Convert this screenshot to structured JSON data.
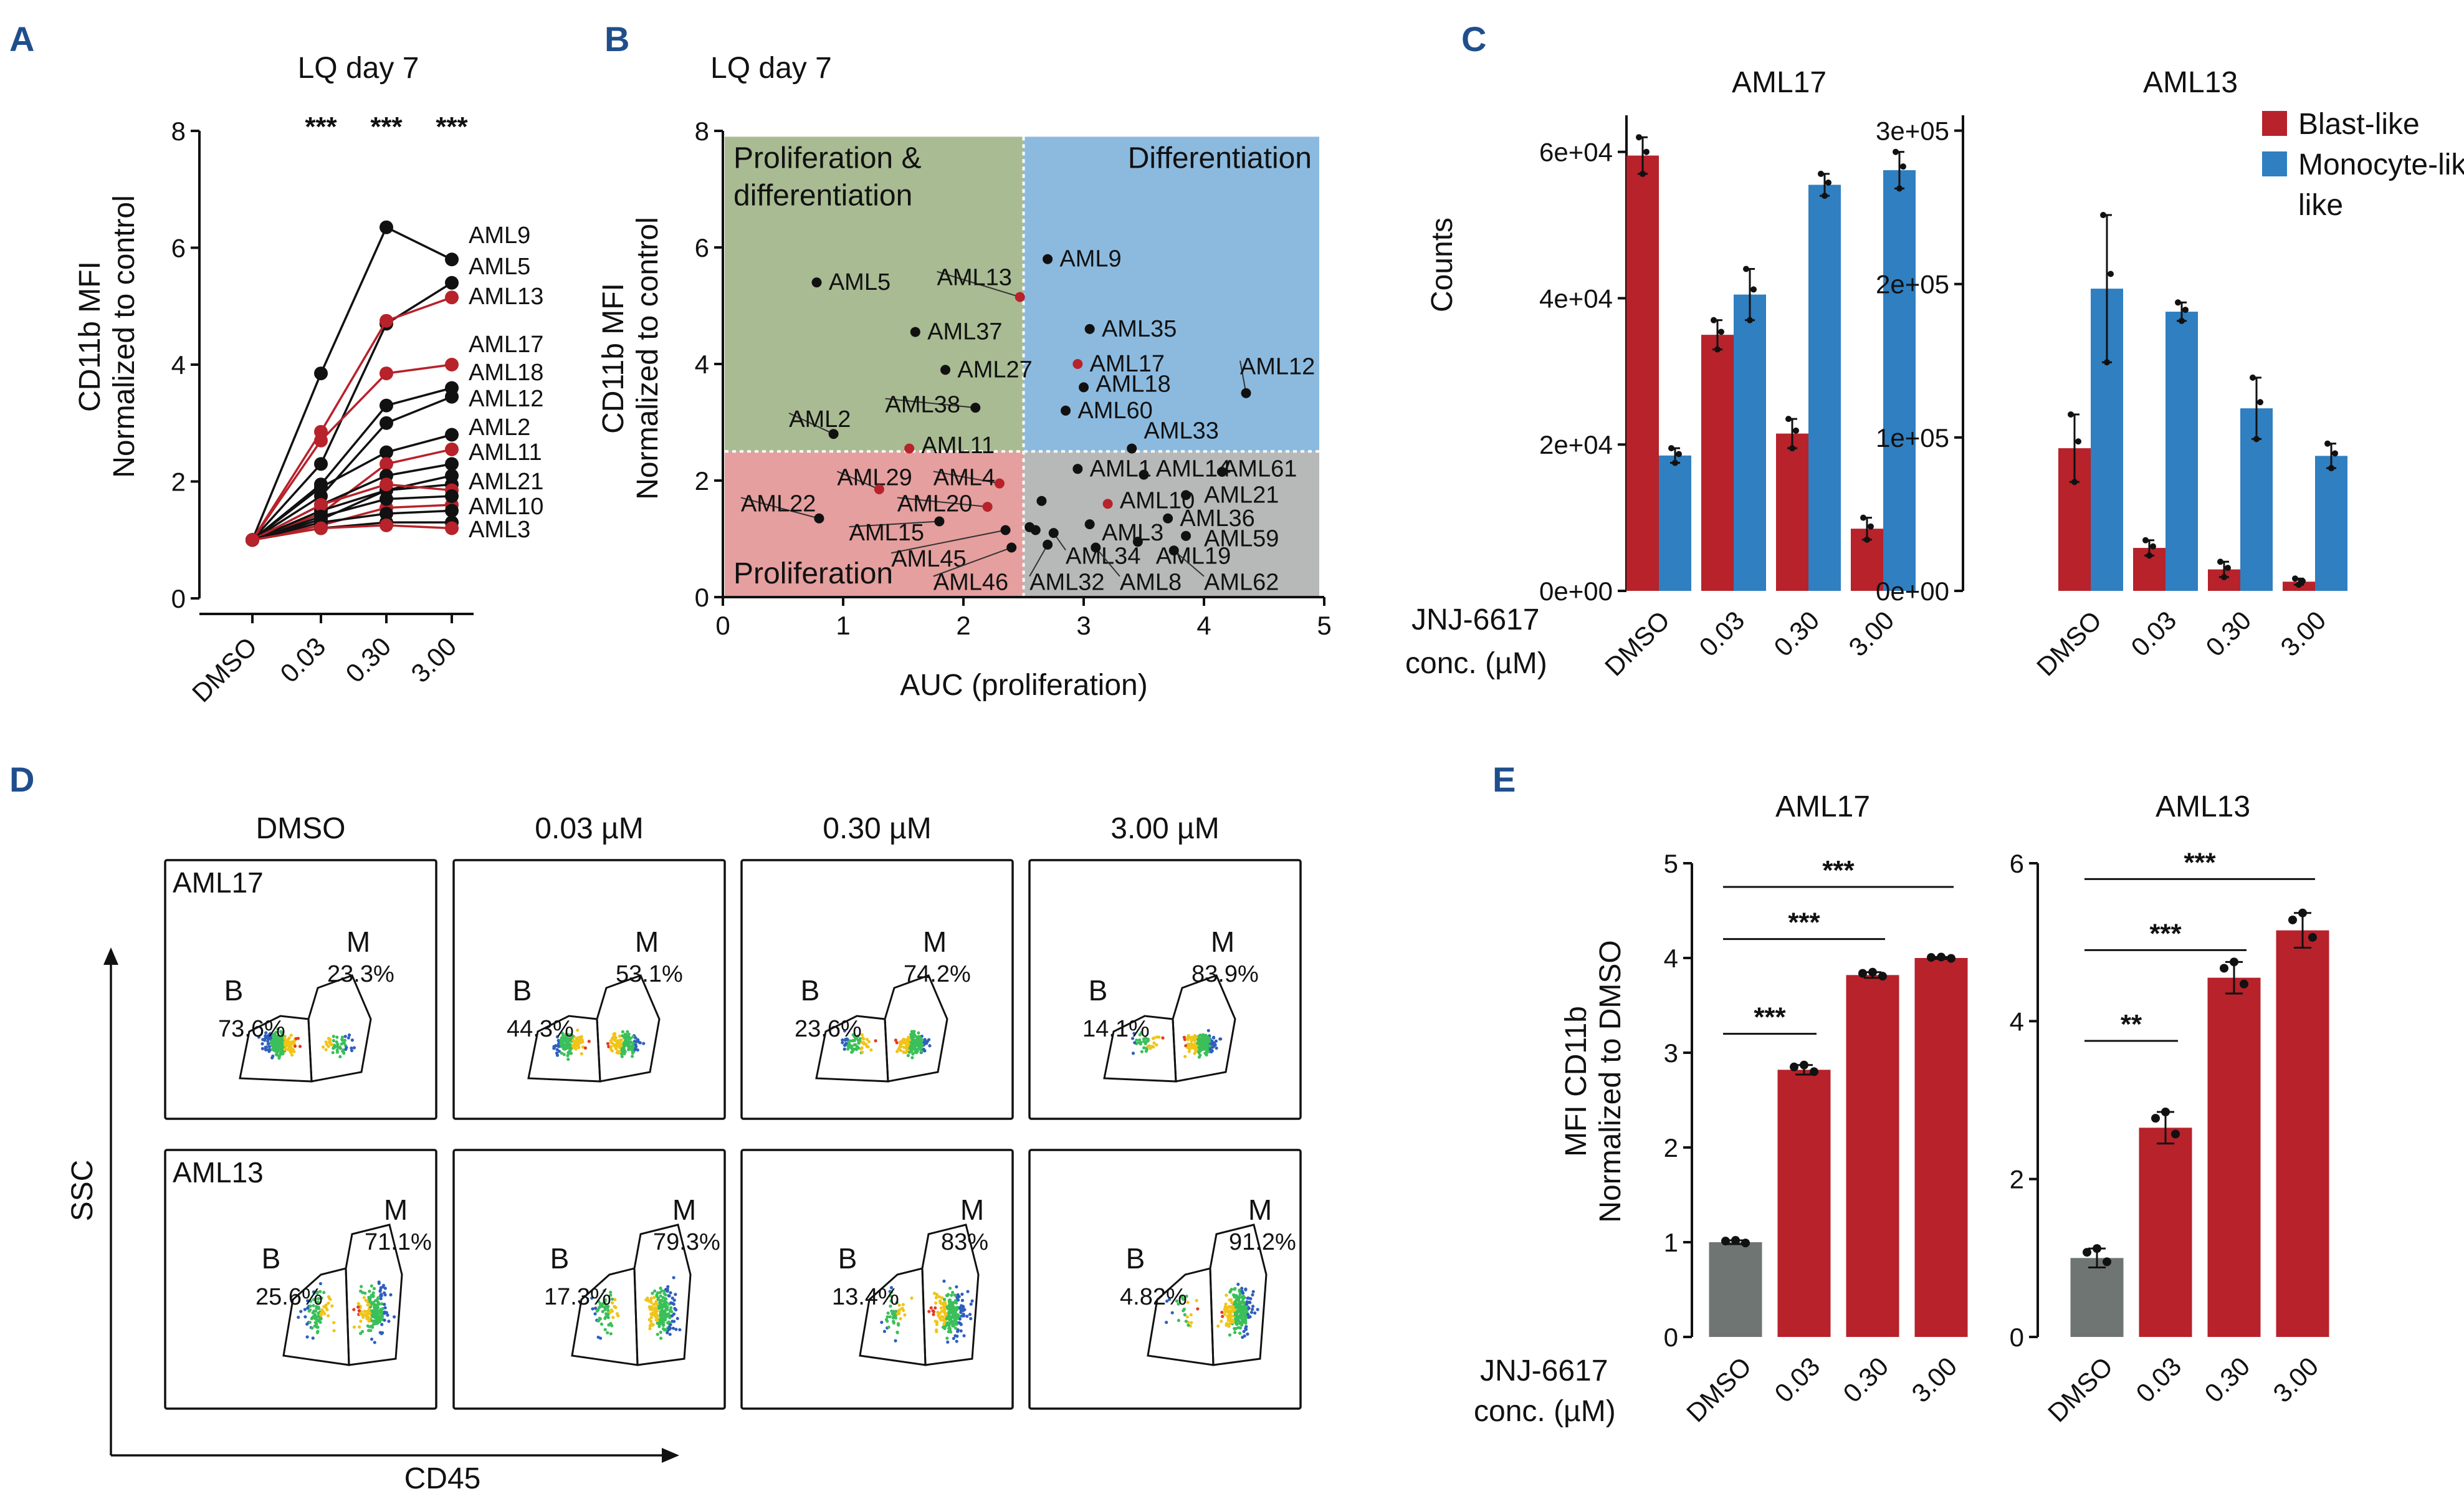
{
  "colors": {
    "red": "#b7222b",
    "blue": "#2f7fc1",
    "grey": "#6f7573",
    "black": "#111111",
    "quad_green": "#a9bb92",
    "quad_blue": "#8cbadf",
    "quad_red": "#e49f9e",
    "quad_grey": "#b7b9b8"
  },
  "panel_letters": {
    "A": "A",
    "B": "B",
    "C": "C",
    "D": "D",
    "E": "E"
  },
  "chart_data": [
    {
      "id": "A",
      "type": "line",
      "title": "LQ day 7",
      "ylabel_top": "CD11b MFI",
      "ylabel_bottom": "Normalized to control",
      "categories": [
        "DMSO",
        "0.03",
        "0.30",
        "3.00"
      ],
      "ylim": [
        0,
        8
      ],
      "yticks": [
        "0",
        "2",
        "4",
        "6",
        "8"
      ],
      "ytick_values": [
        0,
        2,
        4,
        6,
        8
      ],
      "significance": [
        "***",
        "***",
        "***"
      ],
      "series": [
        {
          "name": "AML9",
          "color": "black",
          "values": [
            1,
            3.85,
            6.35,
            5.8
          ]
        },
        {
          "name": "AML5",
          "color": "black",
          "values": [
            1,
            2.3,
            4.7,
            5.4
          ]
        },
        {
          "name": "AML13",
          "color": "red",
          "values": [
            1,
            2.85,
            4.75,
            5.15
          ]
        },
        {
          "name": "AML17",
          "color": "red",
          "values": [
            1,
            2.7,
            3.85,
            4.0
          ]
        },
        {
          "name": "AML18",
          "color": "black",
          "values": [
            1,
            1.95,
            3.3,
            3.6
          ]
        },
        {
          "name": "AML12",
          "color": "black",
          "values": [
            1,
            1.75,
            3.0,
            3.45
          ]
        },
        {
          "name": "AML2",
          "color": "black",
          "values": [
            1,
            1.9,
            2.5,
            2.8
          ]
        },
        {
          "name": "AML11",
          "color": "red",
          "values": [
            1,
            1.45,
            2.3,
            2.55
          ]
        },
        {
          "name": "AML21",
          "color": "black",
          "values": [
            1,
            1.35,
            1.85,
            1.95
          ]
        },
        {
          "name": "AML10",
          "color": "red",
          "values": [
            1,
            1.25,
            1.55,
            1.6
          ]
        },
        {
          "name": "AML3",
          "color": "black",
          "values": [
            1,
            1.2,
            1.3,
            1.3
          ]
        },
        {
          "name": "",
          "color": "black",
          "values": [
            1,
            1.6,
            2.1,
            2.3
          ]
        },
        {
          "name": "",
          "color": "black",
          "values": [
            1,
            1.5,
            1.85,
            2.1
          ]
        },
        {
          "name": "",
          "color": "red",
          "values": [
            1,
            1.6,
            1.95,
            1.85
          ]
        },
        {
          "name": "",
          "color": "black",
          "values": [
            1,
            1.4,
            1.7,
            1.75
          ]
        },
        {
          "name": "",
          "color": "black",
          "values": [
            1,
            1.3,
            1.45,
            1.5
          ]
        },
        {
          "name": "",
          "color": "red",
          "values": [
            1,
            1.2,
            1.25,
            1.2
          ]
        }
      ]
    },
    {
      "id": "B",
      "type": "scatter",
      "title": "LQ day 7",
      "xlabel": "AUC (proliferation)",
      "ylabel_top": "CD11b MFI",
      "ylabel_bottom": "Normalized to control",
      "xlim": [
        0,
        5
      ],
      "ylim": [
        0,
        8
      ],
      "xticks": [
        "0",
        "1",
        "2",
        "3",
        "4",
        "5"
      ],
      "xtick_values": [
        0,
        1,
        2,
        3,
        4,
        5
      ],
      "yticks": [
        "0",
        "2",
        "4",
        "6",
        "8"
      ],
      "ytick_values": [
        0,
        2,
        4,
        6,
        8
      ],
      "thresholds": {
        "x": 2.5,
        "y": 2.5
      },
      "quadrant_labels": {
        "top_left_line1": "Proliferation &",
        "top_left_line2": "differentiation",
        "top_right": "Differentiation",
        "bottom_left": "Proliferation"
      },
      "points": [
        {
          "label": "AML5",
          "x": 0.78,
          "y": 5.4,
          "color": "black",
          "lx": 0.88,
          "ly": 5.4
        },
        {
          "label": "AML13",
          "x": 2.47,
          "y": 5.15,
          "color": "red",
          "lx": 1.78,
          "ly": 5.48
        },
        {
          "label": "AML37",
          "x": 1.6,
          "y": 4.55,
          "color": "black",
          "lx": 1.7,
          "ly": 4.55
        },
        {
          "label": "AML27",
          "x": 1.85,
          "y": 3.9,
          "color": "black",
          "lx": 1.95,
          "ly": 3.9
        },
        {
          "label": "AML38",
          "x": 2.1,
          "y": 3.25,
          "color": "black",
          "lx": 1.35,
          "ly": 3.3
        },
        {
          "label": "AML2",
          "x": 0.92,
          "y": 2.8,
          "color": "black",
          "lx": 0.55,
          "ly": 3.05
        },
        {
          "label": "AML11",
          "x": 1.55,
          "y": 2.55,
          "color": "red",
          "lx": 1.65,
          "ly": 2.6
        },
        {
          "label": "AML9",
          "x": 2.7,
          "y": 5.8,
          "color": "black",
          "lx": 2.8,
          "ly": 5.8
        },
        {
          "label": "AML35",
          "x": 3.05,
          "y": 4.6,
          "color": "black",
          "lx": 3.15,
          "ly": 4.6
        },
        {
          "label": "AML17",
          "x": 2.95,
          "y": 4.0,
          "color": "red",
          "lx": 3.05,
          "ly": 4.0
        },
        {
          "label": "AML18",
          "x": 3.0,
          "y": 3.6,
          "color": "black",
          "lx": 3.1,
          "ly": 3.65
        },
        {
          "label": "AML60",
          "x": 2.85,
          "y": 3.2,
          "color": "black",
          "lx": 2.95,
          "ly": 3.2
        },
        {
          "label": "AML12",
          "x": 4.35,
          "y": 3.5,
          "color": "black",
          "lx": 4.3,
          "ly": 3.95
        },
        {
          "label": "AML33",
          "x": 3.4,
          "y": 2.55,
          "color": "black",
          "lx": 3.5,
          "ly": 2.85
        },
        {
          "label": "AML29",
          "x": 1.3,
          "y": 1.85,
          "color": "red",
          "lx": 0.95,
          "ly": 2.05
        },
        {
          "label": "AML4",
          "x": 2.3,
          "y": 1.95,
          "color": "red",
          "lx": 1.75,
          "ly": 2.05
        },
        {
          "label": "AML22",
          "x": 0.8,
          "y": 1.35,
          "color": "black",
          "lx": 0.15,
          "ly": 1.6
        },
        {
          "label": "AML20",
          "x": 2.2,
          "y": 1.55,
          "color": "red",
          "lx": 1.45,
          "ly": 1.6
        },
        {
          "label": "AML15",
          "x": 1.8,
          "y": 1.3,
          "color": "black",
          "lx": 1.05,
          "ly": 1.1
        },
        {
          "label": "AML45",
          "x": 2.35,
          "y": 1.15,
          "color": "black",
          "lx": 1.4,
          "ly": 0.65
        },
        {
          "label": "AML46",
          "x": 2.4,
          "y": 0.85,
          "color": "black",
          "lx": 1.75,
          "ly": 0.25
        },
        {
          "label": "AML1",
          "x": 2.95,
          "y": 2.2,
          "color": "black",
          "lx": 3.05,
          "ly": 2.2
        },
        {
          "label": "AML14",
          "x": 3.5,
          "y": 2.1,
          "color": "black",
          "lx": 3.6,
          "ly": 2.2
        },
        {
          "label": "AML61",
          "x": 4.15,
          "y": 2.15,
          "color": "black",
          "lx": 4.15,
          "ly": 2.2
        },
        {
          "label": "AML10",
          "x": 3.2,
          "y": 1.6,
          "color": "red",
          "lx": 3.3,
          "ly": 1.65
        },
        {
          "label": "AML21",
          "x": 3.85,
          "y": 1.75,
          "color": "black",
          "lx": 4.0,
          "ly": 1.75
        },
        {
          "label": "AML36",
          "x": 3.7,
          "y": 1.35,
          "color": "black",
          "lx": 3.8,
          "ly": 1.35
        },
        {
          "label": "AML3",
          "x": 3.05,
          "y": 1.25,
          "color": "black",
          "lx": 3.15,
          "ly": 1.1
        },
        {
          "label": "AML59",
          "x": 3.85,
          "y": 1.05,
          "color": "black",
          "lx": 4.0,
          "ly": 1.0
        },
        {
          "label": "AML34",
          "x": 2.75,
          "y": 1.1,
          "color": "black",
          "lx": 2.85,
          "ly": 0.7
        },
        {
          "label": "AML19",
          "x": 3.45,
          "y": 0.95,
          "color": "black",
          "lx": 3.6,
          "ly": 0.7
        },
        {
          "label": "AML32",
          "x": 2.7,
          "y": 0.9,
          "color": "black",
          "lx": 2.55,
          "ly": 0.25
        },
        {
          "label": "AML8",
          "x": 3.1,
          "y": 0.85,
          "color": "black",
          "lx": 3.3,
          "ly": 0.25
        },
        {
          "label": "AML62",
          "x": 3.75,
          "y": 0.8,
          "color": "black",
          "lx": 4.0,
          "ly": 0.25
        },
        {
          "label": "",
          "x": 2.55,
          "y": 1.2,
          "color": "black",
          "lx": 0,
          "ly": 0
        },
        {
          "label": "",
          "x": 2.65,
          "y": 1.65,
          "color": "black",
          "lx": 0,
          "ly": 0
        },
        {
          "label": "",
          "x": 2.6,
          "y": 1.15,
          "color": "black",
          "lx": 0,
          "ly": 0
        }
      ]
    },
    {
      "id": "C",
      "type": "bar",
      "ylabel": "Counts",
      "xlabel_line1": "JNJ-6617",
      "xlabel_line2": "conc. (µM)",
      "categories": [
        "DMSO",
        "0.03",
        "0.30",
        "3.00"
      ],
      "legend": [
        "Blast-like",
        "Monocyte-like"
      ],
      "legend_line2": "like",
      "subplots": [
        {
          "title": "AML17",
          "ylim": [
            0,
            65000
          ],
          "yticks": [
            "0e+00",
            "2e+04",
            "4e+04",
            "6e+04"
          ],
          "ytick_values": [
            0,
            20000,
            40000,
            60000
          ],
          "series": [
            {
              "name": "Blast-like",
              "values": [
                59500,
                35000,
                21500,
                8500
              ],
              "errors": [
                2500,
                2000,
                2000,
                1500
              ]
            },
            {
              "name": "Monocyte-like",
              "values": [
                18500,
                40500,
                55500,
                57500
              ],
              "errors": [
                1000,
                3500,
                1500,
                2500
              ]
            }
          ]
        },
        {
          "title": "AML13",
          "ylim": [
            0,
            310000
          ],
          "yticks": [
            "0e+00",
            "1e+05",
            "2e+05",
            "3e+05"
          ],
          "ytick_values": [
            0,
            100000,
            200000,
            300000
          ],
          "series": [
            {
              "name": "Blast-like",
              "values": [
                93000,
                28000,
                14000,
                6000
              ],
              "errors": [
                22000,
                5000,
                5000,
                2000
              ]
            },
            {
              "name": "Monocyte-like",
              "values": [
                197000,
                182000,
                119000,
                88000
              ],
              "errors": [
                48000,
                6000,
                20000,
                8000
              ]
            }
          ]
        }
      ]
    },
    {
      "id": "E",
      "type": "bar",
      "ylabel_top": "MFI CD11b",
      "ylabel_bottom": "Normalized to DMSO",
      "xlabel_line1": "JNJ-6617",
      "xlabel_line2": "conc. (µM)",
      "categories": [
        "DMSO",
        "0.03",
        "0.30",
        "3.00"
      ],
      "subplots": [
        {
          "title": "AML17",
          "ylim": [
            0,
            5
          ],
          "yticks": [
            "0",
            "1",
            "2",
            "3",
            "4",
            "5"
          ],
          "ytick_values": [
            0,
            1,
            2,
            3,
            4,
            5
          ],
          "values": [
            1.0,
            2.82,
            3.82,
            4.0
          ],
          "errors": [
            0.02,
            0.05,
            0.03,
            0.01
          ],
          "significance": [
            {
              "from": 0,
              "to": 1,
              "label": "***",
              "level": 3.2
            },
            {
              "from": 0,
              "to": 2,
              "label": "***",
              "level": 4.2
            },
            {
              "from": 0,
              "to": 3,
              "label": "***",
              "level": 4.75
            }
          ]
        },
        {
          "title": "AML13",
          "ylim": [
            0,
            6
          ],
          "yticks": [
            "0",
            "2",
            "4",
            "6"
          ],
          "ytick_values": [
            0,
            2,
            4,
            6
          ],
          "values": [
            1.0,
            2.65,
            4.55,
            5.15
          ],
          "errors": [
            0.12,
            0.2,
            0.2,
            0.22
          ],
          "significance": [
            {
              "from": 0,
              "to": 1,
              "label": "**",
              "level": 3.75
            },
            {
              "from": 0,
              "to": 2,
              "label": "***",
              "level": 4.9
            },
            {
              "from": 0,
              "to": 3,
              "label": "***",
              "level": 5.8
            }
          ]
        }
      ]
    }
  ],
  "facs": {
    "columns": [
      "DMSO",
      "0.03 µM",
      "0.30 µM",
      "3.00 µM"
    ],
    "xlabel": "CD45",
    "ylabel": "SSC",
    "gate_b": "B",
    "gate_m": "M",
    "rows": [
      {
        "sample": "AML17",
        "b_pct": [
          "73.6%",
          "44.3%",
          "23.6%",
          "14.1%"
        ],
        "m_pct": [
          "23.3%",
          "53.1%",
          "74.2%",
          "83.9%"
        ]
      },
      {
        "sample": "AML13",
        "b_pct": [
          "25.6%",
          "17.3%",
          "13.4%",
          "4.82%"
        ],
        "m_pct": [
          "71.1%",
          "79.3%",
          "83%",
          "91.2%"
        ]
      }
    ]
  }
}
